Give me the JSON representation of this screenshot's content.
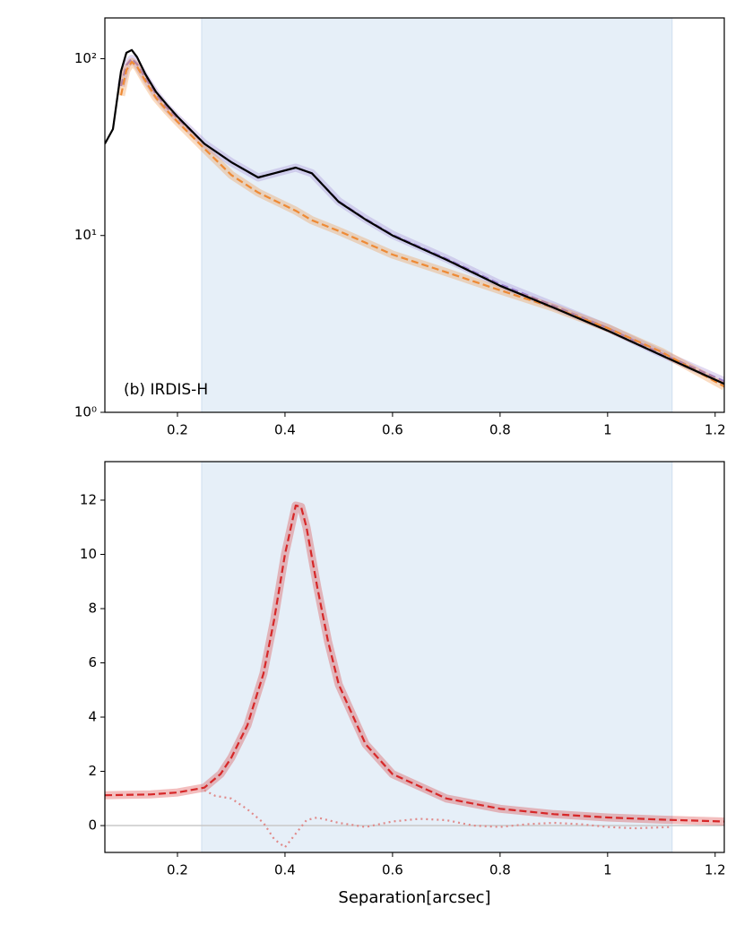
{
  "chart_data": [
    {
      "type": "line",
      "yscale": "log",
      "annotation": "(b) IRDIS-H",
      "xlim": [
        0.065,
        1.217
      ],
      "ylim": [
        1,
        170
      ],
      "xticks": [
        0.2,
        0.4,
        0.6,
        0.8,
        1.0,
        1.2
      ],
      "yticks": [
        {
          "value": 1,
          "label": "10⁰"
        },
        {
          "value": 10,
          "label": "10¹"
        },
        {
          "value": 100,
          "label": "10²"
        }
      ],
      "shaded_span": [
        0.245,
        1.12
      ],
      "shade_color": "#e6eff8",
      "series": [
        {
          "color": "#9b7fd1",
          "linestyle": "dashed",
          "band": true,
          "x": [
            0.065,
            0.08,
            0.095,
            0.105,
            0.115,
            0.125,
            0.14,
            0.16,
            0.18,
            0.2,
            0.25,
            0.3,
            0.35,
            0.38,
            0.42,
            0.45,
            0.5,
            0.55,
            0.6,
            0.7,
            0.8,
            0.9,
            1.0,
            1.1,
            1.217
          ],
          "values": [
            null,
            null,
            70,
            92,
            100,
            93,
            78,
            63,
            53,
            46,
            33,
            26,
            21.3,
            22.5,
            24.2,
            22.5,
            15.6,
            12.4,
            10.1,
            7.4,
            5.3,
            4.0,
            3.0,
            2.15,
            1.5
          ]
        },
        {
          "color": "#ee8a35",
          "linestyle": "dashed",
          "band": true,
          "x": [
            0.065,
            0.08,
            0.095,
            0.105,
            0.115,
            0.125,
            0.14,
            0.16,
            0.18,
            0.2,
            0.25,
            0.3,
            0.35,
            0.38,
            0.42,
            0.45,
            0.5,
            0.55,
            0.6,
            0.7,
            0.8,
            0.9,
            1.0,
            1.1,
            1.217
          ],
          "values": [
            null,
            null,
            62,
            86,
            96,
            90,
            75,
            60,
            51,
            44,
            31,
            22,
            17.5,
            15.8,
            13.8,
            12.2,
            10.6,
            9.1,
            7.8,
            6.2,
            4.9,
            3.9,
            3.0,
            2.2,
            1.4
          ]
        },
        {
          "color": "#000000",
          "linestyle": "solid",
          "band": false,
          "x": [
            0.065,
            0.08,
            0.095,
            0.105,
            0.115,
            0.125,
            0.14,
            0.16,
            0.18,
            0.2,
            0.25,
            0.3,
            0.35,
            0.38,
            0.42,
            0.45,
            0.5,
            0.55,
            0.6,
            0.7,
            0.8,
            0.9,
            1.0,
            1.1,
            1.217
          ],
          "values": [
            33,
            40,
            85,
            108,
            112,
            102,
            82,
            65,
            55,
            47,
            33,
            26,
            21.3,
            22.5,
            24.2,
            22.5,
            15.5,
            12.3,
            10,
            7.3,
            5.2,
            3.9,
            2.9,
            2.1,
            1.45
          ]
        }
      ]
    },
    {
      "type": "line",
      "yscale": "linear",
      "xlabel": "Separation[arcsec]",
      "xlim": [
        0.065,
        1.217
      ],
      "ylim": [
        -0.99,
        13.42
      ],
      "xticks": [
        0.2,
        0.4,
        0.6,
        0.8,
        1.0,
        1.2
      ],
      "yticks": [
        0,
        2,
        4,
        6,
        8,
        10,
        12
      ],
      "shaded_span": [
        0.245,
        1.12
      ],
      "shade_color": "#e6eff8",
      "hline": 0,
      "series": [
        {
          "color": "#d62728",
          "linestyle": "dashed",
          "band": true,
          "x": [
            0.065,
            0.15,
            0.2,
            0.25,
            0.28,
            0.3,
            0.33,
            0.36,
            0.38,
            0.4,
            0.42,
            0.43,
            0.44,
            0.46,
            0.48,
            0.5,
            0.55,
            0.6,
            0.7,
            0.8,
            0.9,
            1.0,
            1.1,
            1.217
          ],
          "values": [
            1.12,
            1.15,
            1.22,
            1.4,
            1.9,
            2.5,
            3.7,
            5.6,
            7.6,
            10.0,
            11.8,
            11.75,
            11.0,
            8.8,
            6.8,
            5.2,
            3.0,
            1.9,
            1.0,
            0.62,
            0.42,
            0.3,
            0.22,
            0.15
          ]
        },
        {
          "color": "#e08a8a",
          "linestyle": "dotted",
          "band": false,
          "x": [
            0.25,
            0.27,
            0.3,
            0.33,
            0.36,
            0.38,
            0.4,
            0.42,
            0.44,
            0.46,
            0.5,
            0.55,
            0.6,
            0.65,
            0.7,
            0.75,
            0.8,
            0.85,
            0.9,
            0.95,
            1.0,
            1.05,
            1.12
          ],
          "values": [
            1.3,
            1.1,
            1.0,
            0.6,
            0.1,
            -0.5,
            -0.8,
            -0.3,
            0.2,
            0.3,
            0.1,
            -0.05,
            0.15,
            0.25,
            0.2,
            0.0,
            -0.05,
            0.05,
            0.1,
            0.05,
            -0.05,
            -0.1,
            -0.05
          ]
        }
      ]
    }
  ]
}
